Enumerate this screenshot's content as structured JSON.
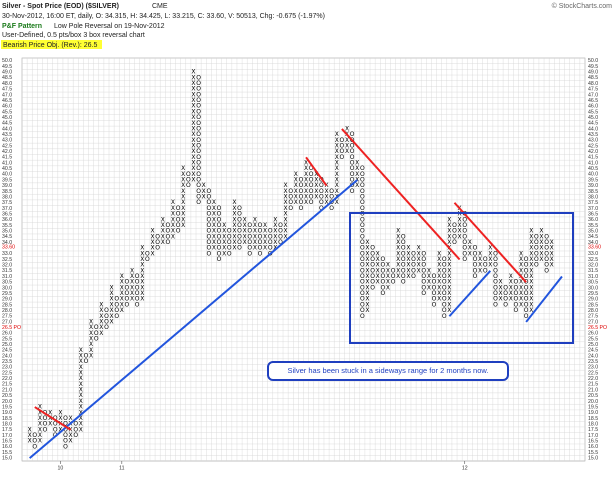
{
  "header": {
    "title": "Silver - Spot Price (EOD) ($SILVER)",
    "exchange": "CME",
    "quote": "30-Nov-2012, 16:00 ET, daily, O: 34.315, H: 34.425, L: 33.215, C: 33.60, V: 50513, Chg: -0.675 (-1.97%)",
    "pattern_label": "P&F Pattern",
    "pattern": "Low Pole Reversal on 19-Nov-2012",
    "settings": "User-Defined, 0.5 pts/box 3 box reversal chart",
    "objective": "Bearish Price Obj. (Rev.): 26.5",
    "copyright": "© StockCharts.com"
  },
  "chart_data": {
    "type": "point-and-figure",
    "ylim": [
      15,
      50
    ],
    "box_size": 0.5,
    "x_color": "#000000",
    "o_color": "#000000",
    "grid": true,
    "yticks": [
      {
        "value": 15,
        "label": "15.0"
      },
      15.5,
      {
        "value": 16,
        "label": "16.0"
      },
      16.5,
      {
        "value": 17,
        "label": "17.0"
      },
      17.5,
      {
        "value": 18,
        "label": "18.0"
      },
      18.5,
      {
        "value": 19,
        "label": "19.0"
      },
      19.5,
      {
        "value": 20,
        "label": "20.0"
      },
      20.5,
      {
        "value": 21,
        "label": "21.0"
      },
      21.5,
      {
        "value": 22,
        "label": "22.0"
      },
      22.5,
      {
        "value": 23,
        "label": "23.0"
      },
      23.5,
      {
        "value": 24,
        "label": "24.0"
      },
      24.5,
      {
        "value": 25,
        "label": "25.0"
      },
      25.5,
      {
        "value": 26,
        "label": "26.0"
      },
      26.5,
      {
        "value": 27,
        "label": "27.0"
      },
      27.5,
      {
        "value": 28,
        "label": "28.0"
      },
      28.5,
      {
        "value": 29,
        "label": "29.0"
      },
      29.5,
      {
        "value": 30,
        "label": "30.0"
      },
      30.5,
      {
        "value": 31,
        "label": "31.0"
      },
      31.5,
      {
        "value": 32,
        "label": "32.0"
      },
      32.5,
      {
        "value": 33,
        "label": "33.0"
      },
      33.5,
      {
        "value": 34,
        "label": "34.0"
      },
      34.5,
      {
        "value": 35,
        "label": "35.0"
      },
      35.5,
      {
        "value": 36,
        "label": "36.0"
      },
      36.5,
      {
        "value": 37,
        "label": "37.0"
      },
      37.5,
      {
        "value": 38,
        "label": "38.0"
      },
      38.5,
      {
        "value": 39,
        "label": "39.0"
      },
      39.5,
      {
        "value": 40,
        "label": "40.0"
      },
      40.5,
      {
        "value": 41,
        "label": "41.0"
      },
      41.5,
      {
        "value": 42,
        "label": "42.0"
      },
      42.5,
      {
        "value": 43,
        "label": "43.0"
      },
      43.5,
      {
        "value": 44,
        "label": "44.0"
      },
      44.5,
      {
        "value": 45,
        "label": "45.0"
      },
      45.5,
      {
        "value": 46,
        "label": "46.0"
      },
      46.5,
      {
        "value": 47,
        "label": "47.0"
      },
      47.5,
      {
        "value": 48,
        "label": "48.0"
      },
      48.5,
      {
        "value": 49,
        "label": "49.0"
      },
      49.5,
      {
        "value": 50,
        "label": "50.0"
      }
    ],
    "xticks": [
      {
        "value": 6,
        "label": "10"
      },
      {
        "value": 18,
        "label": "11"
      },
      {
        "value": 85,
        "label": "12"
      }
    ],
    "price_label": {
      "value": 33.6,
      "label": "33.60",
      "color": "#dd0000"
    },
    "target_label": {
      "value": 26.5,
      "label": "26.5 PO",
      "color": "#dd0000"
    },
    "columns": [
      {
        "type": "X",
        "low": 16.5,
        "high": 17.5
      },
      {
        "type": "O",
        "low": 16,
        "high": 17
      },
      {
        "type": "X",
        "low": 16.5,
        "high": 19.5
      },
      {
        "type": "O",
        "low": 17.5,
        "high": 19
      },
      {
        "type": "X",
        "low": 18,
        "high": 19
      },
      {
        "type": "O",
        "low": 17,
        "high": 18.5
      },
      {
        "type": "X",
        "low": 17.5,
        "high": 19
      },
      {
        "type": "O",
        "low": 16,
        "high": 18.5
      },
      {
        "type": "X",
        "low": 16.5,
        "high": 18.5
      },
      {
        "type": "O",
        "low": 17,
        "high": 18
      },
      {
        "type": "X",
        "low": 17.5,
        "high": 24.5
      },
      {
        "type": "O",
        "low": 23.5,
        "high": 24
      },
      {
        "type": "X",
        "low": 24,
        "high": 27
      },
      {
        "type": "O",
        "low": 25.5,
        "high": 26.5
      },
      {
        "type": "X",
        "low": 26,
        "high": 28.5
      },
      {
        "type": "O",
        "low": 26.5,
        "high": 28
      },
      {
        "type": "X",
        "low": 27,
        "high": 30
      },
      {
        "type": "O",
        "low": 27.5,
        "high": 29
      },
      {
        "type": "X",
        "low": 28,
        "high": 31
      },
      {
        "type": "O",
        "low": 28.5,
        "high": 30.5
      },
      {
        "type": "X",
        "low": 29,
        "high": 31.5
      },
      {
        "type": "O",
        "low": 28.5,
        "high": 31
      },
      {
        "type": "X",
        "low": 29,
        "high": 33.5
      },
      {
        "type": "O",
        "low": 32.5,
        "high": 33
      },
      {
        "type": "X",
        "low": 33,
        "high": 35
      },
      {
        "type": "O",
        "low": 33.5,
        "high": 34.5
      },
      {
        "type": "X",
        "low": 34,
        "high": 36
      },
      {
        "type": "O",
        "low": 34,
        "high": 35.5
      },
      {
        "type": "X",
        "low": 34.5,
        "high": 37.5
      },
      {
        "type": "O",
        "low": 35,
        "high": 37
      },
      {
        "type": "X",
        "low": 35.5,
        "high": 40.5
      },
      {
        "type": "O",
        "low": 39,
        "high": 40
      },
      {
        "type": "X",
        "low": 39.5,
        "high": 49
      },
      {
        "type": "O",
        "low": 37.5,
        "high": 48.5
      },
      {
        "type": "X",
        "low": 38,
        "high": 39
      },
      {
        "type": "O",
        "low": 33,
        "high": 38.5
      },
      {
        "type": "X",
        "low": 33.5,
        "high": 37.5
      },
      {
        "type": "O",
        "low": 32.5,
        "high": 37
      },
      {
        "type": "X",
        "low": 33,
        "high": 35.5
      },
      {
        "type": "O",
        "low": 33,
        "high": 35
      },
      {
        "type": "X",
        "low": 33.5,
        "high": 37.5
      },
      {
        "type": "O",
        "low": 33.5,
        "high": 37
      },
      {
        "type": "X",
        "low": 34,
        "high": 36
      },
      {
        "type": "O",
        "low": 33,
        "high": 35.5
      },
      {
        "type": "X",
        "low": 33.5,
        "high": 36
      },
      {
        "type": "O",
        "low": 33,
        "high": 35.5
      },
      {
        "type": "X",
        "low": 33.5,
        "high": 35.5
      },
      {
        "type": "O",
        "low": 33,
        "high": 35
      },
      {
        "type": "X",
        "low": 33.5,
        "high": 36
      },
      {
        "type": "O",
        "low": 34,
        "high": 35.5
      },
      {
        "type": "X",
        "low": 34.5,
        "high": 39
      },
      {
        "type": "O",
        "low": 37,
        "high": 38.5
      },
      {
        "type": "X",
        "low": 37.5,
        "high": 40
      },
      {
        "type": "O",
        "low": 37,
        "high": 39.5
      },
      {
        "type": "X",
        "low": 37.5,
        "high": 41
      },
      {
        "type": "O",
        "low": 37.5,
        "high": 40.5
      },
      {
        "type": "X",
        "low": 38,
        "high": 40
      },
      {
        "type": "O",
        "low": 37,
        "high": 39.5
      },
      {
        "type": "X",
        "low": 37.5,
        "high": 39
      },
      {
        "type": "O",
        "low": 37,
        "high": 38.5
      },
      {
        "type": "X",
        "low": 37.5,
        "high": 43.5
      },
      {
        "type": "O",
        "low": 41.5,
        "high": 43
      },
      {
        "type": "X",
        "low": 42,
        "high": 44
      },
      {
        "type": "O",
        "low": 38.5,
        "high": 43.5
      },
      {
        "type": "X",
        "low": 39,
        "high": 41
      },
      {
        "type": "O",
        "low": 27.5,
        "high": 40.5
      },
      {
        "type": "X",
        "low": 28,
        "high": 34
      },
      {
        "type": "O",
        "low": 30,
        "high": 33.5
      },
      {
        "type": "X",
        "low": 30.5,
        "high": 33
      },
      {
        "type": "O",
        "low": 29.5,
        "high": 32.5
      },
      {
        "type": "X",
        "low": 30,
        "high": 32
      },
      {
        "type": "O",
        "low": 30.5,
        "high": 31.5
      },
      {
        "type": "X",
        "low": 31,
        "high": 35
      },
      {
        "type": "O",
        "low": 30.5,
        "high": 34.5
      },
      {
        "type": "X",
        "low": 31,
        "high": 33.5
      },
      {
        "type": "O",
        "low": 31,
        "high": 33
      },
      {
        "type": "X",
        "low": 31.5,
        "high": 33.5
      },
      {
        "type": "O",
        "low": 29.5,
        "high": 33
      },
      {
        "type": "X",
        "low": 30,
        "high": 31.5
      },
      {
        "type": "O",
        "low": 28.5,
        "high": 31
      },
      {
        "type": "X",
        "low": 29,
        "high": 33
      },
      {
        "type": "O",
        "low": 27.5,
        "high": 32.5
      },
      {
        "type": "X",
        "low": 28,
        "high": 36
      },
      {
        "type": "O",
        "low": 34,
        "high": 35.5
      },
      {
        "type": "X",
        "low": 34.5,
        "high": 37
      },
      {
        "type": "O",
        "low": 32.5,
        "high": 36.5
      },
      {
        "type": "X",
        "low": 33,
        "high": 34
      },
      {
        "type": "O",
        "low": 31,
        "high": 33.5
      },
      {
        "type": "X",
        "low": 31.5,
        "high": 33
      },
      {
        "type": "O",
        "low": 31.5,
        "high": 32.5
      },
      {
        "type": "X",
        "low": 32,
        "high": 33.5
      },
      {
        "type": "O",
        "low": 28.5,
        "high": 33
      },
      {
        "type": "X",
        "low": 29,
        "high": 30.5
      },
      {
        "type": "O",
        "low": 28.5,
        "high": 30
      },
      {
        "type": "X",
        "low": 29,
        "high": 31
      },
      {
        "type": "O",
        "low": 28,
        "high": 30.5
      },
      {
        "type": "X",
        "low": 28.5,
        "high": 33
      },
      {
        "type": "O",
        "low": 27.5,
        "high": 32.5
      },
      {
        "type": "X",
        "low": 28,
        "high": 35
      },
      {
        "type": "O",
        "low": 32,
        "high": 34.5
      },
      {
        "type": "X",
        "low": 32.5,
        "high": 35
      },
      {
        "type": "O",
        "low": 31.5,
        "high": 34.5
      },
      {
        "type": "X",
        "low": 32,
        "high": 34
      }
    ],
    "trendlines": [
      {
        "color": "#2255dd",
        "from": [
          0,
          15
        ],
        "to": [
          64,
          39.5
        ]
      },
      {
        "color": "#ee2222",
        "from": [
          1,
          19.5
        ],
        "to": [
          8,
          17.5
        ]
      },
      {
        "color": "#ee2222",
        "from": [
          54,
          41.5
        ],
        "to": [
          58,
          39
        ]
      },
      {
        "color": "#ee2222",
        "from": [
          61,
          44
        ],
        "to": [
          84,
          32.5
        ]
      },
      {
        "color": "#ee2222",
        "from": [
          83,
          37.5
        ],
        "to": [
          97,
          30.5
        ]
      },
      {
        "color": "#2255dd",
        "from": [
          82,
          27.5
        ],
        "to": [
          90,
          31.5
        ]
      },
      {
        "color": "#2255dd",
        "from": [
          97,
          27
        ],
        "to": [
          104,
          31
        ]
      }
    ],
    "annotation": "Silver has been stuck in a sideways range for 2 months now."
  }
}
